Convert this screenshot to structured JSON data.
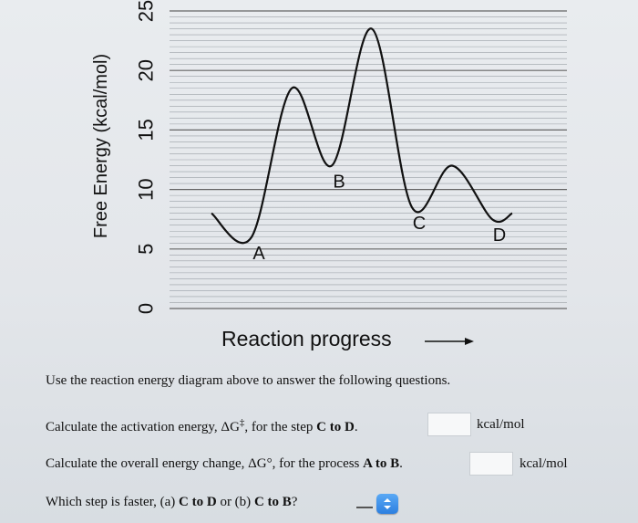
{
  "chart_data": {
    "type": "line",
    "title": "",
    "xlabel": "Reaction progress",
    "ylabel": "Free Energy (kcal/mol)",
    "ylim": [
      0,
      25
    ],
    "yticks": [
      0,
      5,
      10,
      15,
      20,
      25
    ],
    "grid": true,
    "x": [
      0,
      4,
      8,
      12,
      16,
      20,
      24,
      28,
      30
    ],
    "y": [
      8,
      6,
      18.5,
      12,
      23.5,
      8.5,
      12,
      7.5,
      8
    ],
    "point_labels": [
      {
        "text": "A",
        "x": 4,
        "y": 6
      },
      {
        "text": "B",
        "x": 12,
        "y": 12
      },
      {
        "text": "C",
        "x": 20,
        "y": 8.5
      },
      {
        "text": "D",
        "x": 28,
        "y": 7.5
      }
    ]
  },
  "questions": {
    "intro": "Use the reaction energy diagram above to answer the following questions.",
    "q1": {
      "pre": "Calculate the activation energy, ΔG",
      "sup": "‡",
      "mid": ", for the step ",
      "bold": "C to D",
      "post": ".",
      "value": "",
      "unit": "kcal/mol"
    },
    "q2": {
      "pre": "Calculate the overall energy change, ΔG°, for the process ",
      "bold": "A to B",
      "post": ".",
      "value": "",
      "unit": "kcal/mol"
    },
    "q3": {
      "pre": "Which step is faster, (a) ",
      "a": "C to D",
      "or": " or (b) ",
      "b": "C to B",
      "post": "?",
      "selected": ""
    }
  }
}
